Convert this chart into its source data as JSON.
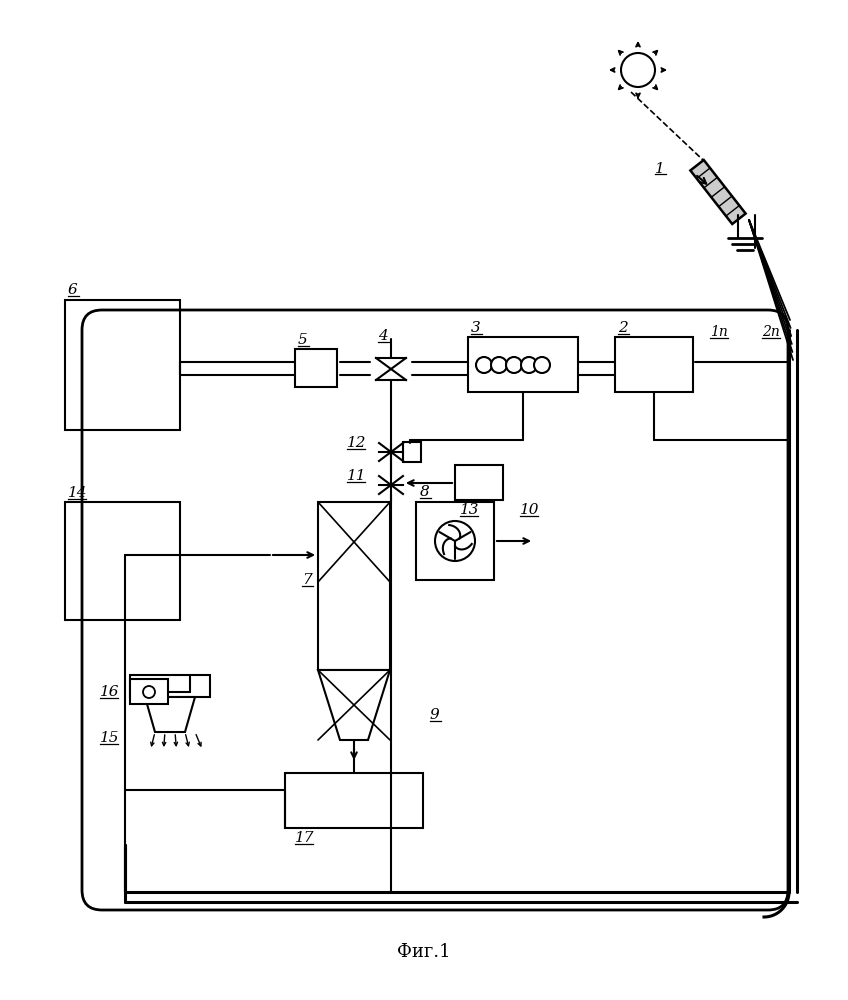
{
  "title": "Фиг.1",
  "bg_color": "#ffffff",
  "lc": "#000000",
  "figsize": [
    8.48,
    10.0
  ],
  "dpi": 100
}
